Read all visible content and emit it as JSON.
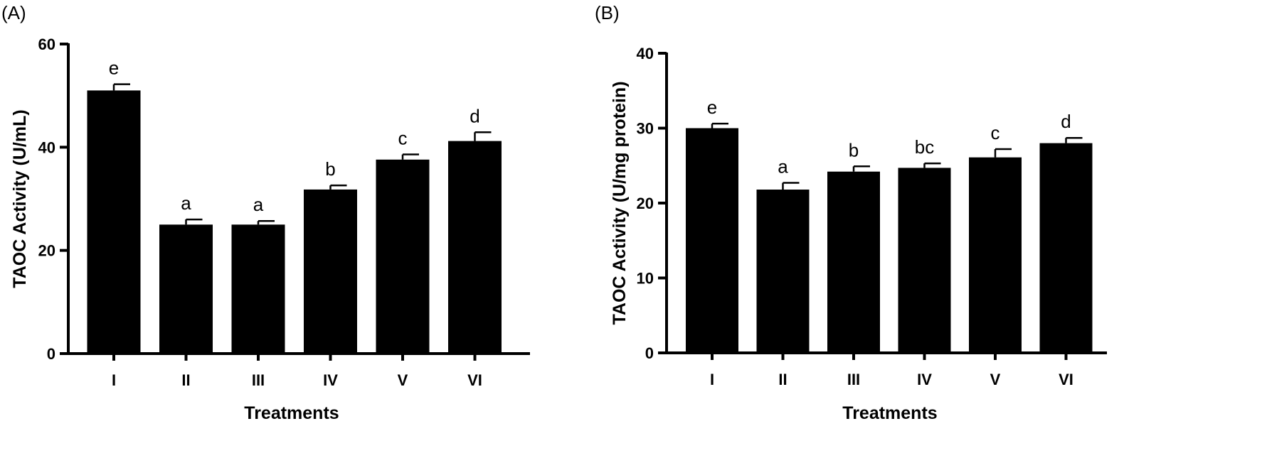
{
  "chart_data": [
    {
      "type": "bar",
      "panel_label": "(A)",
      "categories": [
        "I",
        "II",
        "III",
        "IV",
        "V",
        "VI"
      ],
      "values": [
        51.0,
        25.0,
        25.0,
        31.8,
        37.6,
        41.2
      ],
      "errors": [
        1.2,
        1.0,
        0.7,
        0.8,
        1.0,
        1.7
      ],
      "significance": [
        "e",
        "a",
        "a",
        "b",
        "c",
        "d"
      ],
      "xlabel": "Treatments",
      "ylabel": "TAOC Activity (U/mL)",
      "ylim": [
        0,
        60
      ],
      "yticks": [
        0,
        20,
        40,
        60
      ],
      "bar_color": "#000000",
      "grid": false
    },
    {
      "type": "bar",
      "panel_label": "(B)",
      "categories": [
        "I",
        "II",
        "III",
        "IV",
        "V",
        "VI"
      ],
      "values": [
        30.0,
        21.8,
        24.2,
        24.7,
        26.1,
        28.0
      ],
      "errors": [
        0.6,
        0.9,
        0.7,
        0.6,
        1.1,
        0.7
      ],
      "significance": [
        "e",
        "a",
        "b",
        "bc",
        "c",
        "d"
      ],
      "xlabel": "Treatments",
      "ylabel": "TAOC Activity (U/mg protein)",
      "ylim": [
        0,
        40
      ],
      "yticks": [
        0,
        10,
        20,
        30,
        40
      ],
      "bar_color": "#000000",
      "grid": false
    }
  ]
}
